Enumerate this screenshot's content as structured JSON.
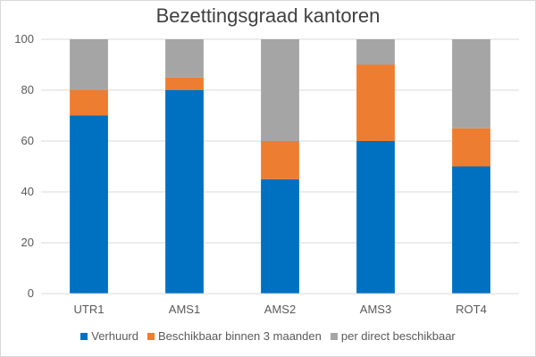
{
  "chart_data": {
    "type": "bar",
    "stacked": true,
    "title": "Bezettingsgraad kantoren",
    "categories": [
      "UTR1",
      "AMS1",
      "AMS2",
      "AMS3",
      "ROT4"
    ],
    "series": [
      {
        "name": "Verhuurd",
        "color": "#0070c0",
        "values": [
          70,
          80,
          45,
          60,
          50
        ]
      },
      {
        "name": "Beschikbaar binnen 3 maanden",
        "color": "#ed7d31",
        "values": [
          10,
          5,
          15,
          30,
          15
        ]
      },
      {
        "name": "per direct beschikbaar",
        "color": "#a5a5a5",
        "values": [
          20,
          15,
          40,
          10,
          35
        ]
      }
    ],
    "yticks": [
      0,
      20,
      40,
      60,
      80,
      100
    ],
    "ylim": [
      0,
      100
    ],
    "grid": true,
    "legend": "bottom"
  }
}
